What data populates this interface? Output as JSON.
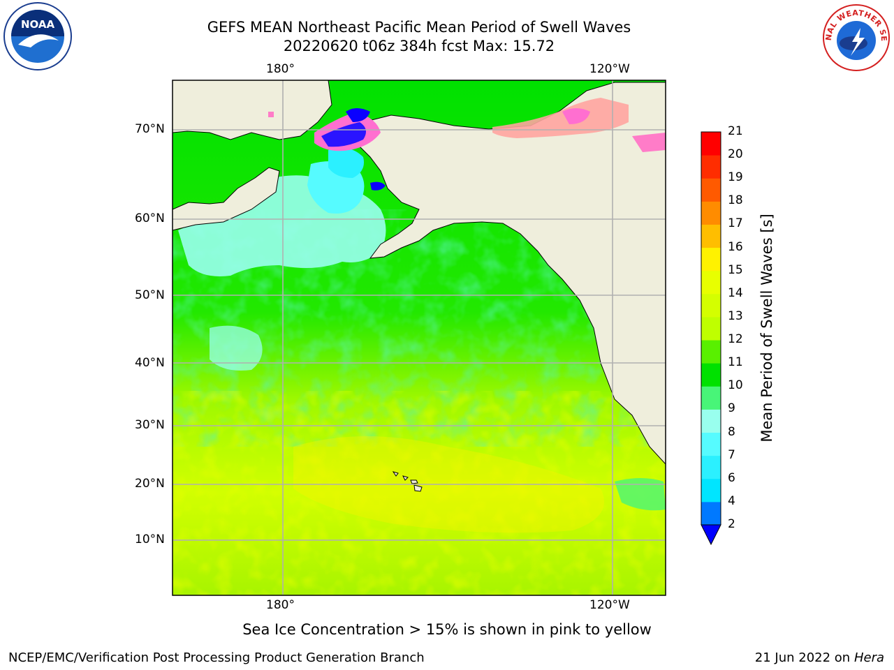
{
  "title": {
    "line1": "GEFS MEAN Northeast Pacific Mean Period of Swell Waves",
    "line2": "20220620 t06z 384h fcst   Max: 15.72"
  },
  "logos": {
    "left": {
      "icon": "noaa-logo-icon",
      "text": "NOAA"
    },
    "right": {
      "icon": "nws-logo-icon",
      "text": "NATIONAL WEATHER SERVICE"
    }
  },
  "map": {
    "lon_labels": [
      "180°",
      "120°W"
    ],
    "lat_labels": [
      "70°N",
      "60°N",
      "50°N",
      "40°N",
      "30°N",
      "20°N",
      "10°N"
    ],
    "colors": {
      "land": "#efeedc",
      "grid": "#b0b0b0",
      "coast": "#000000"
    }
  },
  "colorbar": {
    "title": "Mean Period of Swell Waves [s]",
    "levels": [
      2,
      4,
      6,
      7,
      8,
      9,
      10,
      11,
      12,
      13,
      14,
      15,
      16,
      17,
      18,
      19,
      20,
      21
    ],
    "labels": [
      "2",
      "4",
      "6",
      "7",
      "8",
      "9",
      "10",
      "11",
      "12",
      "13",
      "14",
      "15",
      "16",
      "17",
      "18",
      "19",
      "20",
      "21"
    ],
    "colors": [
      "#0079ff",
      "#00e5ff",
      "#2bf0ff",
      "#56fbff",
      "#99ffee",
      "#48f578",
      "#00e100",
      "#59f000",
      "#bfff00",
      "#d4ff00",
      "#e8ff00",
      "#fff200",
      "#ffbe00",
      "#ff8c00",
      "#ff5a00",
      "#ff2d00",
      "#ff0000"
    ],
    "under_color": "#0000ff"
  },
  "note": "Sea Ice Concentration > 15% is shown in pink to yellow",
  "footer": {
    "left": "NCEP/EMC/Verification Post Processing Product Generation Branch",
    "date": "21 Jun 2022 on",
    "machine": "Hera"
  }
}
